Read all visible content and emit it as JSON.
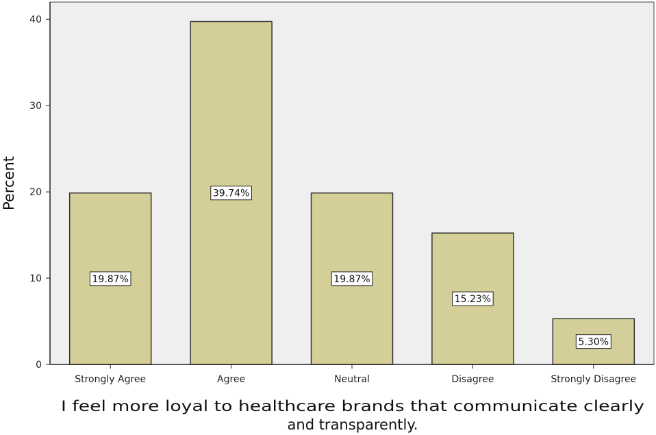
{
  "chart_data": {
    "type": "bar",
    "categories": [
      "Strongly Agree",
      "Agree",
      "Neutral",
      "Disagree",
      "Strongly Disagree"
    ],
    "values": [
      19.87,
      39.74,
      19.87,
      15.23,
      5.3
    ],
    "data_labels": [
      "19.87%",
      "39.74%",
      "19.87%",
      "15.23%",
      "5.30%"
    ],
    "ylabel": "Percent",
    "xlabel_lines": [
      "I feel more loyal to healthcare brands that communicate clearly",
      "and transparently."
    ],
    "ylim": [
      0,
      42
    ],
    "yticks": [
      0,
      10,
      20,
      30,
      40
    ],
    "grid": false,
    "colors": {
      "plot_background": "#efefef",
      "bar_fill": "#d4cf98",
      "bar_stroke": "#333333",
      "label_box_fill": "#ffffff"
    }
  }
}
